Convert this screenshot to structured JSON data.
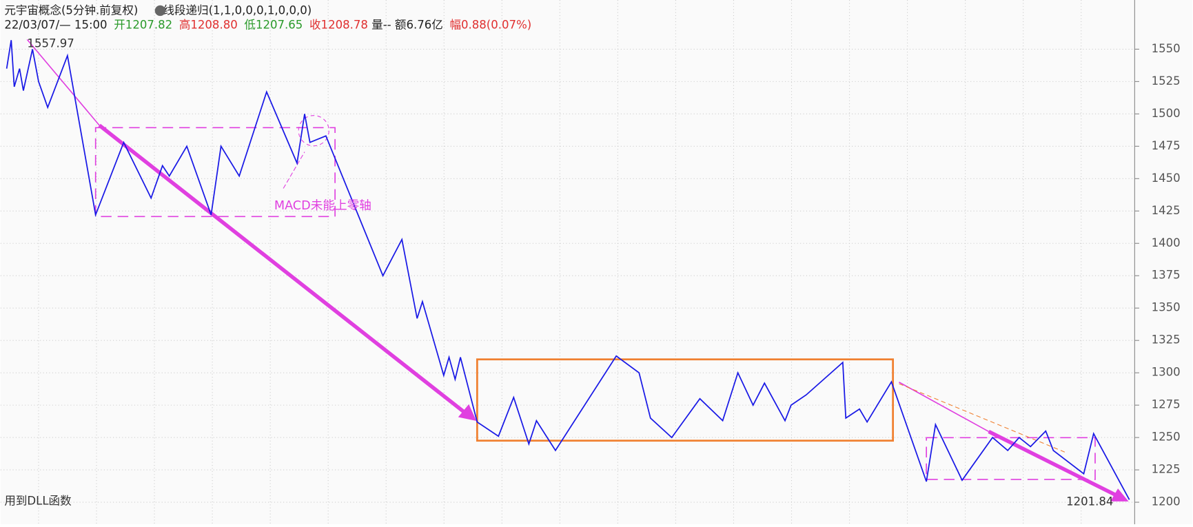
{
  "header": {
    "title": "元宇宙概念(5分钟.前复权)",
    "indicator": "线段递归(1,1,0,0,0,1,0,0,0)",
    "date": "22/03/07/— 15:00",
    "open_label": "开",
    "open": "1207.82",
    "high_label": "高",
    "high": "1208.80",
    "low_label": "低",
    "low": "1207.65",
    "close_label": "收",
    "close": "1208.78",
    "volume": "量--",
    "amount": "额6.76亿",
    "change_label": "幅",
    "change": "0.88(0.07%)"
  },
  "chart_data": {
    "type": "line",
    "color": "#1a1ae6",
    "x": [
      8,
      14,
      18,
      25,
      30,
      42,
      50,
      62,
      88,
      125,
      162,
      198,
      213,
      222,
      245,
      277,
      290,
      314,
      350,
      390,
      400,
      407,
      428,
      503,
      528,
      548,
      555,
      583,
      590,
      598,
      605,
      627,
      655,
      675,
      695,
      705,
      730,
      810,
      840,
      855,
      883,
      920,
      950,
      970,
      990,
      1005,
      1032,
      1040,
      1060,
      1108,
      1112,
      1130,
      1140,
      1172,
      1218,
      1230,
      1265,
      1305,
      1325,
      1340,
      1355,
      1375,
      1385,
      1425,
      1438,
      1485
    ],
    "values": [
      1535,
      1557,
      1521,
      1535,
      1518,
      1550,
      1525,
      1505,
      1545,
      1422,
      1478,
      1435,
      1460,
      1452,
      1475,
      1422,
      1475,
      1452,
      1517,
      1462,
      1500,
      1478,
      1483,
      1375,
      1403,
      1342,
      1355,
      1298,
      1312,
      1295,
      1312,
      1262,
      1251,
      1281,
      1245,
      1263,
      1240,
      1313,
      1300,
      1265,
      1250,
      1280,
      1263,
      1300,
      1275,
      1292,
      1263,
      1275,
      1283,
      1308,
      1265,
      1272,
      1262,
      1293,
      1216,
      1260,
      1217,
      1250,
      1240,
      1250,
      1243,
      1255,
      1240,
      1222,
      1253,
      1202
    ],
    "xlim": [
      0,
      1492
    ],
    "ylim": [
      1183,
      1588
    ],
    "yticks": [
      1200,
      1225,
      1250,
      1275,
      1300,
      1325,
      1350,
      1375,
      1400,
      1425,
      1450,
      1475,
      1500,
      1525,
      1550
    ],
    "grid": true,
    "max_label": 1557.97,
    "min_label": 1201.84,
    "annotation": "MACD未能上零轴",
    "footer": "用到DLL函数"
  }
}
